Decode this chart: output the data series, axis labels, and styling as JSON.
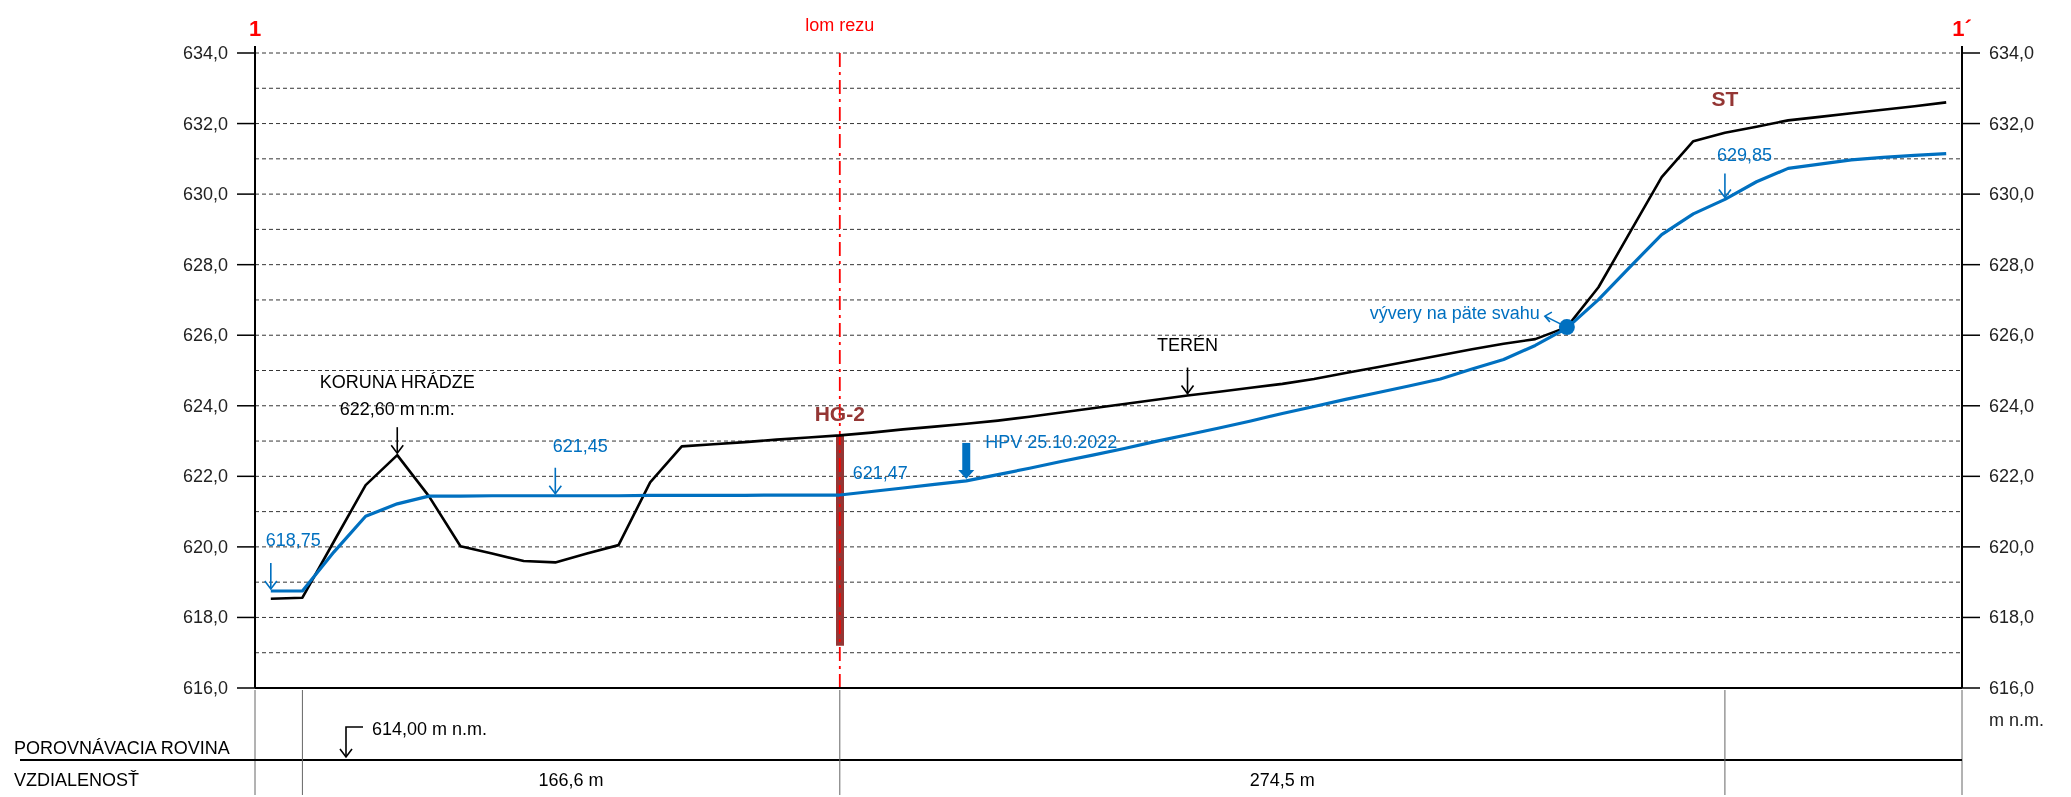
{
  "chart_data": {
    "type": "line",
    "y2label": "m n.m.",
    "categories": [
      null,
      null,
      null,
      null,
      null,
      null,
      null,
      null,
      null,
      null,
      null,
      null,
      null,
      null,
      null,
      null,
      null,
      null,
      null,
      null,
      null,
      null,
      null,
      null,
      null,
      null,
      null,
      null,
      null,
      null,
      null,
      null,
      null,
      null,
      null,
      null,
      null,
      null,
      null,
      null,
      null,
      null,
      null,
      null,
      null,
      null,
      null,
      null,
      null,
      null,
      null,
      null,
      null,
      null
    ],
    "ylim": [
      616,
      634
    ],
    "yticks": [
      {
        "value": 616,
        "label": "616,0"
      },
      {
        "value": 617,
        "label": null
      },
      {
        "value": 618,
        "label": "618,0"
      },
      {
        "value": 619,
        "label": null
      },
      {
        "value": 620,
        "label": "620,0"
      },
      {
        "value": 621,
        "label": null
      },
      {
        "value": 622,
        "label": "622,0"
      },
      {
        "value": 623,
        "label": null
      },
      {
        "value": 624,
        "label": "624,0"
      },
      {
        "value": 625,
        "label": null
      },
      {
        "value": 626,
        "label": "626,0"
      },
      {
        "value": 627,
        "label": null
      },
      {
        "value": 628,
        "label": "628,0"
      },
      {
        "value": 629,
        "label": null
      },
      {
        "value": 630,
        "label": "630,0"
      },
      {
        "value": 631,
        "label": null
      },
      {
        "value": 632,
        "label": "632,0"
      },
      {
        "value": 633,
        "label": null
      },
      {
        "value": 634,
        "label": "634,0"
      }
    ],
    "y2lim": [
      616,
      634
    ],
    "y2ticks": [
      {
        "value": 616,
        "label": "616,0"
      },
      {
        "value": 617,
        "label": null
      },
      {
        "value": 618,
        "label": "618,0"
      },
      {
        "value": 619,
        "label": null
      },
      {
        "value": 620,
        "label": "620,0"
      },
      {
        "value": 621,
        "label": null
      },
      {
        "value": 622,
        "label": "622,0"
      },
      {
        "value": 623,
        "label": null
      },
      {
        "value": 624,
        "label": "624,0"
      },
      {
        "value": 625,
        "label": null
      },
      {
        "value": 626,
        "label": "626,0"
      },
      {
        "value": 627,
        "label": null
      },
      {
        "value": 628,
        "label": "628,0"
      },
      {
        "value": 629,
        "label": null
      },
      {
        "value": 630,
        "label": "630,0"
      },
      {
        "value": 631,
        "label": null
      },
      {
        "value": 632,
        "label": "632,0"
      },
      {
        "value": 633,
        "label": null
      },
      {
        "value": 634,
        "label": "634,0"
      }
    ],
    "grid": "y",
    "marker": "none",
    "series": [
      {
        "color": "#000000",
        "values": [
          618.53,
          618.56,
          620.16,
          621.75,
          622.6,
          621.44,
          620.02,
          619.81,
          619.6,
          619.56,
          619.81,
          620.05,
          621.83,
          622.85,
          622.91,
          622.97,
          623.04,
          623.1,
          623.16,
          623.24,
          623.33,
          623.41,
          623.49,
          623.58,
          623.69,
          623.81,
          623.93,
          624.05,
          624.17,
          624.29,
          624.4,
          624.51,
          624.62,
          624.76,
          624.93,
          625.09,
          625.26,
          625.43,
          625.6,
          625.76,
          625.89,
          626.23,
          627.36,
          628.92,
          630.48,
          631.5,
          631.74,
          631.91,
          632.09,
          632.19,
          632.29,
          632.39,
          632.49,
          632.6
        ]
      },
      {
        "color": "#0070c0",
        "values": [
          618.75,
          618.75,
          619.86,
          620.87,
          621.22,
          621.44,
          621.44,
          621.45,
          621.45,
          621.45,
          621.45,
          621.45,
          621.46,
          621.46,
          621.46,
          621.46,
          621.47,
          621.47,
          621.47,
          621.57,
          621.67,
          621.77,
          621.87,
          622.05,
          622.23,
          622.42,
          622.6,
          622.79,
          622.99,
          623.18,
          623.37,
          623.57,
          623.78,
          623.98,
          624.18,
          624.37,
          624.56,
          624.76,
          625.04,
          625.31,
          625.71,
          626.2,
          627.01,
          627.94,
          628.85,
          629.44,
          629.85,
          630.35,
          630.73,
          630.85,
          630.97,
          631.04,
          631.1,
          631.15
        ]
      },
      {
        "type": "bar",
        "name": "HG-2",
        "color": "#943634",
        "values": [
          null,
          null,
          null,
          null,
          null,
          null,
          null,
          null,
          null,
          null,
          null,
          null,
          null,
          null,
          null,
          null,
          null,
          null,
          5.96,
          null,
          null,
          null,
          null,
          null,
          null,
          null,
          null,
          null,
          null,
          null,
          null,
          null,
          null,
          null,
          null,
          null,
          null,
          null,
          null,
          null,
          null,
          null,
          null,
          null,
          null,
          null,
          null,
          null,
          null,
          null,
          null,
          null,
          null,
          null
        ],
        "base": [
          null,
          null,
          null,
          null,
          null,
          null,
          null,
          null,
          null,
          null,
          null,
          null,
          null,
          null,
          null,
          null,
          null,
          null,
          617.2,
          null,
          null,
          null,
          null,
          null,
          null,
          null,
          null,
          null,
          null,
          null,
          null,
          null,
          null,
          null,
          null,
          null,
          null,
          null,
          null,
          null,
          null,
          null,
          null,
          null,
          null,
          null,
          null,
          null,
          null,
          null,
          null,
          null,
          null,
          null
        ]
      },
      {
        "type": "scatter",
        "marker": "circle",
        "color": "#0070c0",
        "values": [
          null,
          null,
          null,
          null,
          null,
          null,
          null,
          null,
          null,
          null,
          null,
          null,
          null,
          null,
          null,
          null,
          null,
          null,
          null,
          null,
          null,
          null,
          null,
          null,
          null,
          null,
          null,
          null,
          null,
          null,
          null,
          null,
          null,
          null,
          null,
          null,
          null,
          null,
          null,
          null,
          null,
          626.23,
          null,
          null,
          null,
          null,
          null,
          null,
          null,
          null,
          null,
          null,
          null,
          null
        ]
      }
    ],
    "ref_lines": [
      {
        "axis": "x",
        "label": "lom rezu",
        "color": "#ff0000",
        "line_style": "dashed"
      }
    ],
    "annotations": [
      "1",
      "1´",
      {
        "text": "KORUNA HRÁDZE\n622,60 m n.m.",
        "y": 622.6
      },
      {
        "text": "618,75",
        "y": 618.75
      },
      {
        "text": "621,45",
        "y": 621.45
      },
      {
        "text": "621,47",
        "y": 621.47
      },
      "HPV 25.10.2022",
      {
        "text": "TERÉN",
        "y": 624.29
      },
      "629,85",
      "ST",
      "vývery na päte svahu",
      "POROVNÁVACIA ROVINA",
      "614,00 m n.m.",
      "VZDIALENOSŤ",
      "166,6 m",
      "274,5 m"
    ]
  }
}
